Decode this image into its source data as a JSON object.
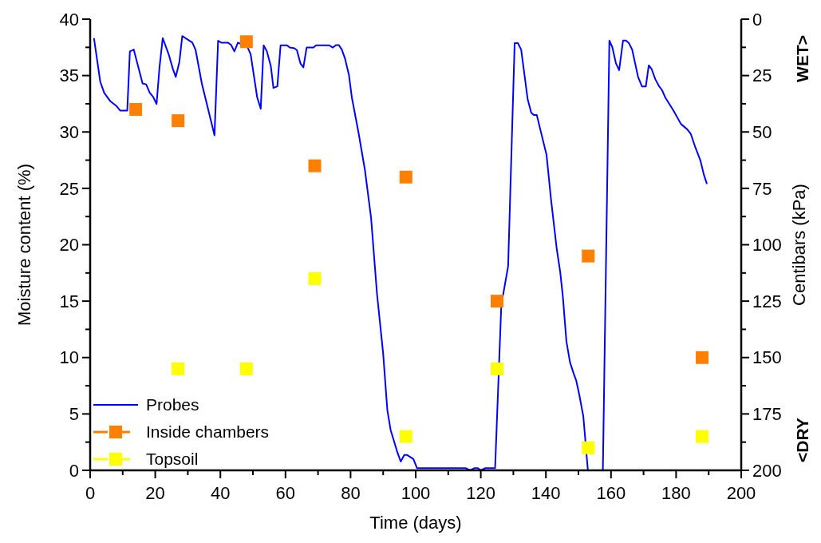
{
  "chart_data": {
    "type": "line",
    "xlabel": "Time (days)",
    "ylabel": "Moisture content (%)",
    "y2label": "Centibars (kPa)",
    "annotations": [
      "WET>",
      "<DRY"
    ],
    "xlim": [
      0,
      200
    ],
    "xticks": [
      0,
      20,
      40,
      60,
      80,
      100,
      120,
      140,
      160,
      180,
      200
    ],
    "ylim": [
      0,
      40
    ],
    "yticks": [
      0,
      5,
      10,
      15,
      20,
      25,
      30,
      35,
      40
    ],
    "y2lim": [
      200,
      0
    ],
    "y2ticks": [
      0,
      25,
      50,
      75,
      100,
      125,
      150,
      175,
      200
    ],
    "grid": false,
    "legend": "bottom left",
    "series": [
      {
        "name": "Probes",
        "axis": "y2",
        "color": "#0000ff",
        "marker": "none",
        "line_style": "solid",
        "x": [
          1.2,
          3.1,
          4.3,
          6.2,
          8.1,
          9.2,
          11.4,
          12.2,
          13.4,
          16.1,
          17.2,
          18.3,
          19.4,
          20.4,
          21.3,
          22.3,
          24.1,
          25.4,
          26.3,
          27.4,
          28.3,
          31.4,
          32.4,
          34.3,
          38.2,
          39.3,
          40.3,
          42.3,
          43.3,
          44.3,
          45.4,
          48.3,
          49.3,
          51.3,
          52.4,
          53.3,
          54.3,
          55.5,
          56.3,
          57.5,
          58.5,
          60.5,
          61.3,
          62.6,
          63.5,
          64.6,
          65.5,
          66.5,
          68.6,
          69.4,
          73.5,
          74.5,
          75.5,
          76.4,
          77.3,
          78.3,
          79.5,
          80.4,
          82.5,
          84.4,
          86.3,
          88.1,
          90.0,
          91.3,
          92.3,
          94.4,
          95.4,
          96.5,
          97.4,
          99.3,
          100.4,
          115.3,
          116.7,
          118.1,
          119.1,
          120.0,
          121.4,
          124.4,
          126.3,
          128.4,
          130.4,
          131.4,
          132.4,
          133.5,
          134.4,
          135.5,
          136.3,
          137.2,
          138.4,
          140.2,
          141.6,
          143.3,
          144.4,
          145.2,
          146.3,
          147.4,
          148.6,
          149.3,
          150.2,
          151.5,
          152.9,
          157.5,
          159.5,
          160.4,
          161.5,
          162.5,
          163.7,
          164.6,
          165.5,
          166.5,
          168.3,
          169.5,
          170.7,
          171.6,
          172.5,
          173.6,
          174.8,
          175.7,
          176.7,
          179.3,
          181.5,
          183.4,
          184.5,
          185.9,
          187.5,
          188.5,
          189.4
        ],
        "values": [
          8.7,
          27.7,
          32.6,
          36.4,
          38.5,
          40.5,
          40.5,
          14.3,
          13.5,
          28.5,
          28.9,
          32.6,
          34.6,
          37.6,
          21.4,
          8.4,
          15.5,
          22.0,
          25.6,
          19.0,
          7.5,
          10.4,
          13.7,
          28.5,
          51.5,
          9.6,
          10.4,
          10.4,
          11.4,
          14.3,
          10.4,
          12.3,
          15.5,
          34.6,
          39.7,
          11.6,
          14.3,
          20.8,
          30.5,
          29.8,
          11.6,
          11.6,
          12.6,
          12.8,
          13.7,
          19.6,
          21.4,
          12.6,
          12.6,
          11.6,
          11.6,
          12.6,
          11.5,
          11.5,
          13.5,
          17.5,
          24.8,
          34.8,
          50.8,
          66.8,
          88.1,
          121.5,
          148.1,
          173.4,
          182.1,
          192.1,
          196.1,
          193.2,
          193.2,
          195.0,
          199.0,
          199.0,
          200,
          199,
          199,
          200,
          199,
          199,
          126.8,
          109.5,
          10.6,
          10.6,
          13.5,
          25.5,
          35.5,
          41.5,
          42.5,
          42.5,
          49.6,
          60.2,
          80.2,
          101.5,
          112.1,
          122.8,
          142.8,
          152.1,
          157.4,
          160.1,
          166.1,
          176.1,
          200,
          200,
          9.5,
          12.4,
          19.5,
          22.6,
          9.5,
          9.5,
          10.6,
          13.5,
          25.5,
          29.8,
          29.8,
          20.5,
          22.2,
          26.6,
          29.8,
          31.5,
          34.8,
          40.8,
          46.5,
          48.8,
          50.8,
          56.8,
          62.8,
          68.8,
          72.8
        ]
      },
      {
        "name": "Inside chambers",
        "type": "scatter",
        "color": "#ff7f00",
        "marker": "square",
        "x": [
          14,
          27,
          48,
          69,
          97,
          125,
          153,
          188
        ],
        "values": [
          32,
          31,
          38,
          27,
          26,
          15,
          19,
          10
        ]
      },
      {
        "name": "Topsoil",
        "type": "scatter",
        "color": "#ffff00",
        "marker": "square",
        "x": [
          27,
          48,
          69,
          97,
          125,
          153,
          188
        ],
        "values": [
          9,
          9,
          17,
          3,
          9,
          2,
          3
        ]
      }
    ]
  }
}
